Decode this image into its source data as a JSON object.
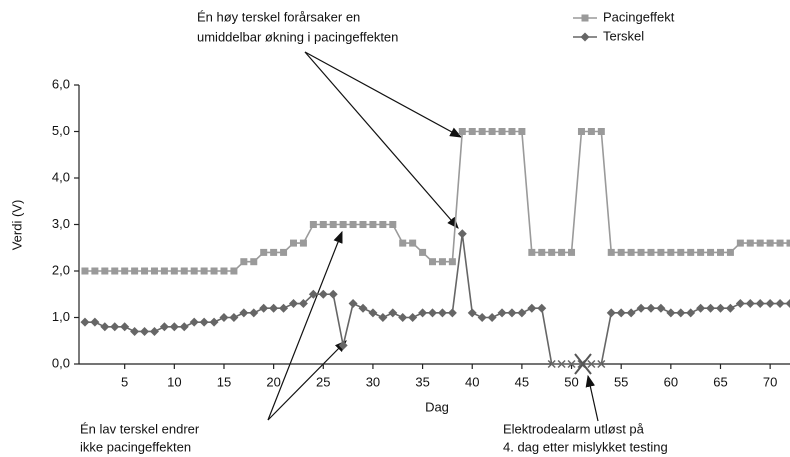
{
  "chart_data": {
    "type": "line",
    "x_label": "Dag",
    "y_label": "Verdi (V)",
    "x": [
      1,
      2,
      3,
      4,
      5,
      6,
      7,
      8,
      9,
      10,
      11,
      12,
      13,
      14,
      15,
      16,
      17,
      18,
      19,
      20,
      21,
      22,
      23,
      24,
      25,
      26,
      27,
      28,
      29,
      30,
      31,
      32,
      33,
      34,
      35,
      36,
      37,
      38,
      39,
      40,
      41,
      42,
      43,
      44,
      45,
      46,
      47,
      48,
      49,
      50,
      51,
      52,
      53,
      54,
      55,
      56,
      57,
      58,
      59,
      60,
      61,
      62,
      63,
      64,
      65,
      66,
      67,
      68,
      69,
      70,
      71,
      72
    ],
    "series": [
      {
        "name": "Pacingeffekt",
        "color": "#9a9a9a",
        "marker": "square",
        "values": [
          2,
          2,
          2,
          2,
          2,
          2,
          2,
          2,
          2,
          2,
          2,
          2,
          2,
          2,
          2,
          2,
          2.2,
          2.2,
          2.4,
          2.4,
          2.4,
          2.6,
          2.6,
          3,
          3,
          3,
          3,
          3,
          3,
          3,
          3,
          3,
          2.6,
          2.6,
          2.4,
          2.2,
          2.2,
          2.2,
          5,
          5,
          5,
          5,
          5,
          5,
          5,
          2.4,
          2.4,
          2.4,
          2.4,
          2.4,
          5,
          5,
          5,
          2.4,
          2.4,
          2.4,
          2.4,
          2.4,
          2.4,
          2.4,
          2.4,
          2.4,
          2.4,
          2.4,
          2.4,
          2.4,
          2.6,
          2.6,
          2.6,
          2.6,
          2.6,
          2.6
        ]
      },
      {
        "name": "Terskel",
        "color": "#666666",
        "marker": "diamond",
        "values": [
          0.9,
          0.9,
          0.8,
          0.8,
          0.8,
          0.7,
          0.7,
          0.7,
          0.8,
          0.8,
          0.8,
          0.9,
          0.9,
          0.9,
          1,
          1,
          1.1,
          1.1,
          1.2,
          1.2,
          1.2,
          1.3,
          1.3,
          1.5,
          1.5,
          1.5,
          0.4,
          1.3,
          1.2,
          1.1,
          1,
          1.1,
          1,
          1,
          1.1,
          1.1,
          1.1,
          1.1,
          2.8,
          1.1,
          1,
          1,
          1.1,
          1.1,
          1.1,
          1.2,
          1.2,
          0,
          0,
          0,
          0,
          0,
          0,
          1.1,
          1.1,
          1.1,
          1.2,
          1.2,
          1.2,
          1.1,
          1.1,
          1.1,
          1.2,
          1.2,
          1.2,
          1.2,
          1.3,
          1.3,
          1.3,
          1.3,
          1.3,
          1.3
        ]
      }
    ],
    "xlim": [
      0.4,
      72
    ],
    "xticks": [
      5,
      10,
      15,
      20,
      25,
      30,
      35,
      40,
      45,
      50,
      55,
      60,
      65,
      70
    ],
    "ylim": [
      0,
      6
    ],
    "yticks": [
      {
        "value": 0,
        "label": "0,0"
      },
      {
        "value": 1,
        "label": "1,0"
      },
      {
        "value": 2,
        "label": "2,0"
      },
      {
        "value": 3,
        "label": "3,0"
      },
      {
        "value": 4,
        "label": "4,0"
      },
      {
        "value": 5,
        "label": "5,0"
      },
      {
        "value": 6,
        "label": "6,0"
      }
    ],
    "legend": "top-right",
    "annotations": [
      {
        "lines": [
          "Én høy terskel forårsaker en",
          "umiddelbar økning i pacingeffekten"
        ]
      },
      {
        "lines": [
          "Én lav terskel endrer",
          "ikke pacingeffekten"
        ]
      },
      {
        "lines": [
          "Elektrodealarm utløst på",
          "4. dag etter mislykket testing"
        ]
      }
    ]
  }
}
